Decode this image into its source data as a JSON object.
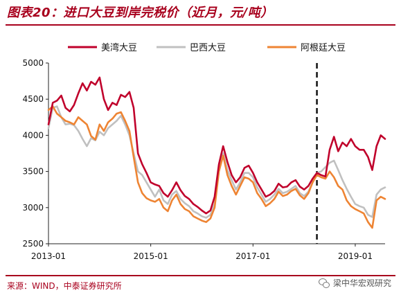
{
  "header": {
    "title": "图表20：进口大豆到岸完税价（近月，元/吨）"
  },
  "footer": {
    "source": "来源：WIND，中泰证券研究所",
    "watermark": "梁中华宏观研究"
  },
  "colors": {
    "brand": "#a8001d",
    "us": "#c0002b",
    "brazil": "#c0c0c0",
    "argentina": "#ee8433"
  },
  "chart_data": {
    "type": "line",
    "title": "",
    "xlabel": "",
    "ylabel": "",
    "ylim": [
      2500,
      5000
    ],
    "yticks": [
      2500,
      3000,
      3500,
      4000,
      4500,
      5000
    ],
    "xlim": [
      "2013-01",
      "2019-08"
    ],
    "xticks": [
      "2013-01",
      "2015-01",
      "2017-01",
      "2019-01"
    ],
    "legend_position": "top",
    "vline": "2018-04",
    "series": [
      {
        "name": "美湾大豆",
        "color": "#c0002b",
        "points": [
          [
            "2013-01",
            4150
          ],
          [
            "2013-02",
            4450
          ],
          [
            "2013-03",
            4480
          ],
          [
            "2013-04",
            4550
          ],
          [
            "2013-05",
            4380
          ],
          [
            "2013-06",
            4330
          ],
          [
            "2013-07",
            4420
          ],
          [
            "2013-08",
            4580
          ],
          [
            "2013-09",
            4720
          ],
          [
            "2013-10",
            4620
          ],
          [
            "2013-11",
            4740
          ],
          [
            "2013-12",
            4700
          ],
          [
            "2014-01",
            4800
          ],
          [
            "2014-02",
            4500
          ],
          [
            "2014-03",
            4350
          ],
          [
            "2014-04",
            4450
          ],
          [
            "2014-05",
            4420
          ],
          [
            "2014-06",
            4560
          ],
          [
            "2014-07",
            4530
          ],
          [
            "2014-08",
            4600
          ],
          [
            "2014-09",
            4380
          ],
          [
            "2014-10",
            3750
          ],
          [
            "2014-11",
            3600
          ],
          [
            "2014-12",
            3480
          ],
          [
            "2015-01",
            3350
          ],
          [
            "2015-02",
            3320
          ],
          [
            "2015-03",
            3300
          ],
          [
            "2015-04",
            3200
          ],
          [
            "2015-05",
            3150
          ],
          [
            "2015-06",
            3240
          ],
          [
            "2015-07",
            3350
          ],
          [
            "2015-08",
            3240
          ],
          [
            "2015-09",
            3160
          ],
          [
            "2015-10",
            3120
          ],
          [
            "2015-11",
            3050
          ],
          [
            "2015-12",
            3010
          ],
          [
            "2016-01",
            2960
          ],
          [
            "2016-02",
            2920
          ],
          [
            "2016-03",
            2960
          ],
          [
            "2016-04",
            3150
          ],
          [
            "2016-05",
            3600
          ],
          [
            "2016-06",
            3850
          ],
          [
            "2016-07",
            3630
          ],
          [
            "2016-08",
            3450
          ],
          [
            "2016-09",
            3350
          ],
          [
            "2016-10",
            3420
          ],
          [
            "2016-11",
            3550
          ],
          [
            "2016-12",
            3580
          ],
          [
            "2017-01",
            3480
          ],
          [
            "2017-02",
            3350
          ],
          [
            "2017-03",
            3250
          ],
          [
            "2017-04",
            3150
          ],
          [
            "2017-05",
            3180
          ],
          [
            "2017-06",
            3230
          ],
          [
            "2017-07",
            3330
          ],
          [
            "2017-08",
            3280
          ],
          [
            "2017-09",
            3290
          ],
          [
            "2017-10",
            3350
          ],
          [
            "2017-11",
            3380
          ],
          [
            "2017-12",
            3290
          ],
          [
            "2018-01",
            3250
          ],
          [
            "2018-02",
            3300
          ],
          [
            "2018-03",
            3400
          ],
          [
            "2018-04",
            3480
          ],
          [
            "2018-05",
            3450
          ],
          [
            "2018-06",
            3430
          ],
          [
            "2018-07",
            3800
          ],
          [
            "2018-08",
            3980
          ],
          [
            "2018-09",
            3780
          ],
          [
            "2018-10",
            3900
          ],
          [
            "2018-11",
            3850
          ],
          [
            "2018-12",
            3950
          ],
          [
            "2019-01",
            3850
          ],
          [
            "2019-02",
            3800
          ],
          [
            "2019-03",
            3800
          ],
          [
            "2019-04",
            3700
          ],
          [
            "2019-05",
            3520
          ],
          [
            "2019-06",
            3850
          ],
          [
            "2019-07",
            4000
          ],
          [
            "2019-08",
            3950
          ]
        ]
      },
      {
        "name": "巴西大豆",
        "color": "#c0c0c0",
        "points": [
          [
            "2013-01",
            4100
          ],
          [
            "2013-02",
            4380
          ],
          [
            "2013-03",
            4400
          ],
          [
            "2013-04",
            4250
          ],
          [
            "2013-05",
            4150
          ],
          [
            "2013-06",
            4160
          ],
          [
            "2013-07",
            4140
          ],
          [
            "2013-08",
            4060
          ],
          [
            "2013-09",
            3950
          ],
          [
            "2013-10",
            3850
          ],
          [
            "2013-11",
            3960
          ],
          [
            "2013-12",
            3930
          ],
          [
            "2014-01",
            4050
          ],
          [
            "2014-02",
            4000
          ],
          [
            "2014-03",
            4100
          ],
          [
            "2014-04",
            4150
          ],
          [
            "2014-05",
            4200
          ],
          [
            "2014-06",
            4270
          ],
          [
            "2014-07",
            4150
          ],
          [
            "2014-08",
            4000
          ],
          [
            "2014-09",
            3750
          ],
          [
            "2014-10",
            3500
          ],
          [
            "2014-11",
            3450
          ],
          [
            "2014-12",
            3350
          ],
          [
            "2015-01",
            3250
          ],
          [
            "2015-02",
            3150
          ],
          [
            "2015-03",
            3250
          ],
          [
            "2015-04",
            3100
          ],
          [
            "2015-05",
            3050
          ],
          [
            "2015-06",
            3180
          ],
          [
            "2015-07",
            3230
          ],
          [
            "2015-08",
            3120
          ],
          [
            "2015-09",
            3060
          ],
          [
            "2015-10",
            3020
          ],
          [
            "2015-11",
            2950
          ],
          [
            "2015-12",
            2920
          ],
          [
            "2016-01",
            2880
          ],
          [
            "2016-02",
            2860
          ],
          [
            "2016-03",
            2900
          ],
          [
            "2016-04",
            3050
          ],
          [
            "2016-05",
            3550
          ],
          [
            "2016-06",
            3750
          ],
          [
            "2016-07",
            3520
          ],
          [
            "2016-08",
            3380
          ],
          [
            "2016-09",
            3250
          ],
          [
            "2016-10",
            3350
          ],
          [
            "2016-11",
            3480
          ],
          [
            "2016-12",
            3480
          ],
          [
            "2017-01",
            3420
          ],
          [
            "2017-02",
            3280
          ],
          [
            "2017-03",
            3180
          ],
          [
            "2017-04",
            3080
          ],
          [
            "2017-05",
            3120
          ],
          [
            "2017-06",
            3180
          ],
          [
            "2017-07",
            3260
          ],
          [
            "2017-08",
            3200
          ],
          [
            "2017-09",
            3220
          ],
          [
            "2017-10",
            3260
          ],
          [
            "2017-11",
            3300
          ],
          [
            "2017-12",
            3200
          ],
          [
            "2018-01",
            3160
          ],
          [
            "2018-02",
            3220
          ],
          [
            "2018-03",
            3350
          ],
          [
            "2018-04",
            3480
          ],
          [
            "2018-05",
            3500
          ],
          [
            "2018-06",
            3560
          ],
          [
            "2018-07",
            3620
          ],
          [
            "2018-08",
            3650
          ],
          [
            "2018-09",
            3520
          ],
          [
            "2018-10",
            3380
          ],
          [
            "2018-11",
            3260
          ],
          [
            "2018-12",
            3150
          ],
          [
            "2019-01",
            3050
          ],
          [
            "2019-02",
            3020
          ],
          [
            "2019-03",
            3000
          ],
          [
            "2019-04",
            2900
          ],
          [
            "2019-05",
            2870
          ],
          [
            "2019-06",
            3180
          ],
          [
            "2019-07",
            3250
          ],
          [
            "2019-08",
            3280
          ]
        ]
      },
      {
        "name": "阿根廷大豆",
        "color": "#ee8433",
        "points": [
          [
            "2013-01",
            4350
          ],
          [
            "2013-02",
            4400
          ],
          [
            "2013-03",
            4300
          ],
          [
            "2013-04",
            4250
          ],
          [
            "2013-05",
            4200
          ],
          [
            "2013-06",
            4180
          ],
          [
            "2013-07",
            4150
          ],
          [
            "2013-08",
            4250
          ],
          [
            "2013-09",
            4200
          ],
          [
            "2013-10",
            4150
          ],
          [
            "2013-11",
            3990
          ],
          [
            "2013-12",
            3940
          ],
          [
            "2014-01",
            4150
          ],
          [
            "2014-02",
            4060
          ],
          [
            "2014-03",
            4180
          ],
          [
            "2014-04",
            4230
          ],
          [
            "2014-05",
            4300
          ],
          [
            "2014-06",
            4320
          ],
          [
            "2014-07",
            4200
          ],
          [
            "2014-08",
            4060
          ],
          [
            "2014-09",
            3700
          ],
          [
            "2014-10",
            3350
          ],
          [
            "2014-11",
            3200
          ],
          [
            "2014-12",
            3130
          ],
          [
            "2015-01",
            3100
          ],
          [
            "2015-02",
            3080
          ],
          [
            "2015-03",
            3120
          ],
          [
            "2015-04",
            3000
          ],
          [
            "2015-05",
            2950
          ],
          [
            "2015-06",
            3100
          ],
          [
            "2015-07",
            3180
          ],
          [
            "2015-08",
            3050
          ],
          [
            "2015-09",
            2980
          ],
          [
            "2015-10",
            2950
          ],
          [
            "2015-11",
            2880
          ],
          [
            "2015-12",
            2850
          ],
          [
            "2016-01",
            2820
          ],
          [
            "2016-02",
            2800
          ],
          [
            "2016-03",
            2850
          ],
          [
            "2016-04",
            3000
          ],
          [
            "2016-05",
            3500
          ],
          [
            "2016-06",
            3720
          ],
          [
            "2016-07",
            3450
          ],
          [
            "2016-08",
            3300
          ],
          [
            "2016-09",
            3180
          ],
          [
            "2016-10",
            3300
          ],
          [
            "2016-11",
            3420
          ],
          [
            "2016-12",
            3400
          ],
          [
            "2017-01",
            3350
          ],
          [
            "2017-02",
            3200
          ],
          [
            "2017-03",
            3120
          ],
          [
            "2017-04",
            3020
          ],
          [
            "2017-05",
            3060
          ],
          [
            "2017-06",
            3120
          ],
          [
            "2017-07",
            3220
          ],
          [
            "2017-08",
            3160
          ],
          [
            "2017-09",
            3180
          ],
          [
            "2017-10",
            3230
          ],
          [
            "2017-11",
            3260
          ],
          [
            "2017-12",
            3170
          ],
          [
            "2018-01",
            3120
          ],
          [
            "2018-02",
            3200
          ],
          [
            "2018-03",
            3350
          ],
          [
            "2018-04",
            3450
          ],
          [
            "2018-05",
            3420
          ],
          [
            "2018-06",
            3400
          ],
          [
            "2018-07",
            3500
          ],
          [
            "2018-08",
            3420
          ],
          [
            "2018-09",
            3300
          ],
          [
            "2018-10",
            3250
          ],
          [
            "2018-11",
            3100
          ],
          [
            "2018-12",
            3020
          ],
          [
            "2019-01",
            2980
          ],
          [
            "2019-02",
            2950
          ],
          [
            "2019-03",
            2920
          ],
          [
            "2019-04",
            2800
          ],
          [
            "2019-05",
            2720
          ],
          [
            "2019-06",
            3100
          ],
          [
            "2019-07",
            3150
          ],
          [
            "2019-08",
            3120
          ]
        ]
      }
    ]
  }
}
